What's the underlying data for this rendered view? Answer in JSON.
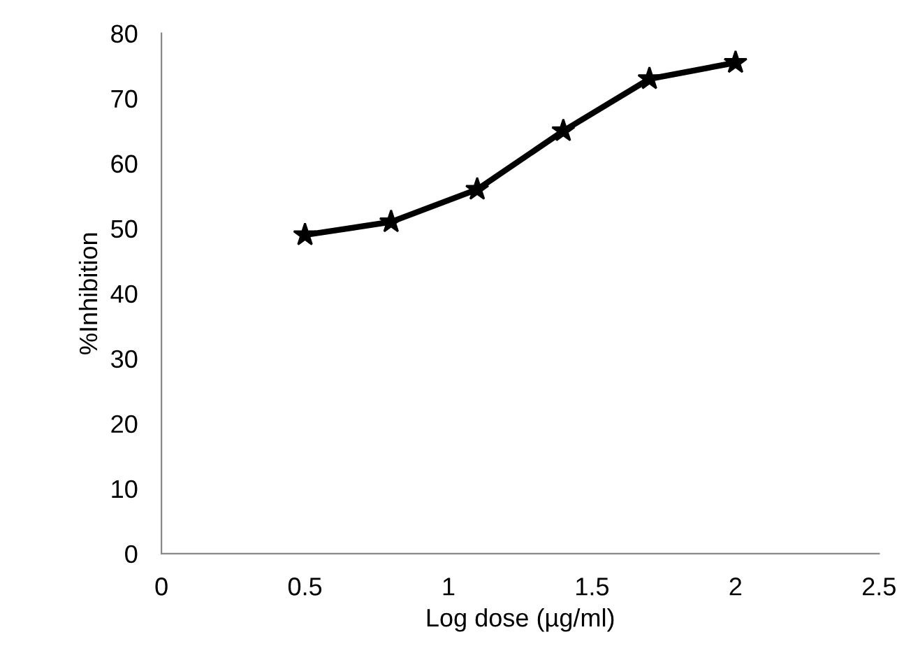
{
  "chart_data": {
    "type": "line",
    "xlabel": "Log dose (µg/ml)",
    "ylabel": "%Inhibition",
    "x": [
      0.5,
      0.8,
      1.1,
      1.4,
      1.7,
      2.0
    ],
    "series": [
      {
        "color": "#000000",
        "values": [
          49,
          51,
          56,
          65,
          73,
          75.5
        ]
      }
    ],
    "xlim": [
      0,
      2.5
    ],
    "xticks": [
      0,
      0.5,
      1,
      1.5,
      2,
      2.5
    ],
    "ylim": [
      0,
      80
    ],
    "yticks": [
      0,
      10,
      20,
      30,
      40,
      50,
      60,
      70,
      80
    ],
    "marker": "star",
    "line_style": "solid",
    "grid": false,
    "legend": false
  }
}
